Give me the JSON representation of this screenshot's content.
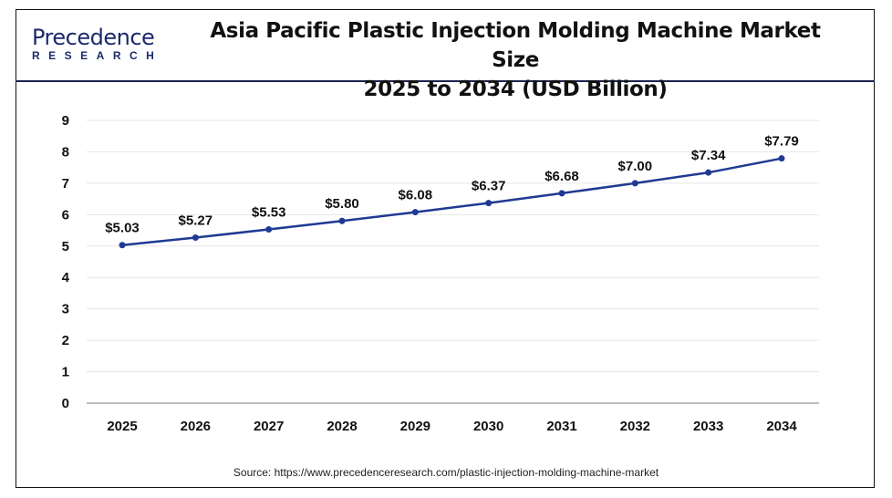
{
  "logo": {
    "main": "Precedence",
    "sub": "RESEARCH"
  },
  "source": "Source: https://www.precedenceresearch.com/plastic-injection-molding-machine-market",
  "colors": {
    "line": "#1f3a93",
    "header_rule": "#1c2350",
    "grid": "#e6e6e6"
  },
  "chart_data": {
    "type": "line",
    "title_line1": "Asia Pacific Plastic Injection Molding Machine Market Size",
    "title_line2": "2025 to 2034 (USD Billion)",
    "categories": [
      "2025",
      "2026",
      "2027",
      "2028",
      "2029",
      "2030",
      "2031",
      "2032",
      "2033",
      "2034"
    ],
    "values": [
      5.03,
      5.27,
      5.53,
      5.8,
      6.08,
      6.37,
      6.68,
      7.0,
      7.34,
      7.79
    ],
    "data_labels": [
      "$5.03",
      "$5.27",
      "$5.53",
      "$5.80",
      "$6.08",
      "$6.37",
      "$6.68",
      "$7.00",
      "$7.34",
      "$7.79"
    ],
    "yticks": [
      "0",
      "1",
      "2",
      "3",
      "4",
      "5",
      "6",
      "7",
      "8",
      "9"
    ],
    "ylim": [
      0,
      9
    ],
    "xlabel": "",
    "ylabel": "",
    "grid": true
  }
}
